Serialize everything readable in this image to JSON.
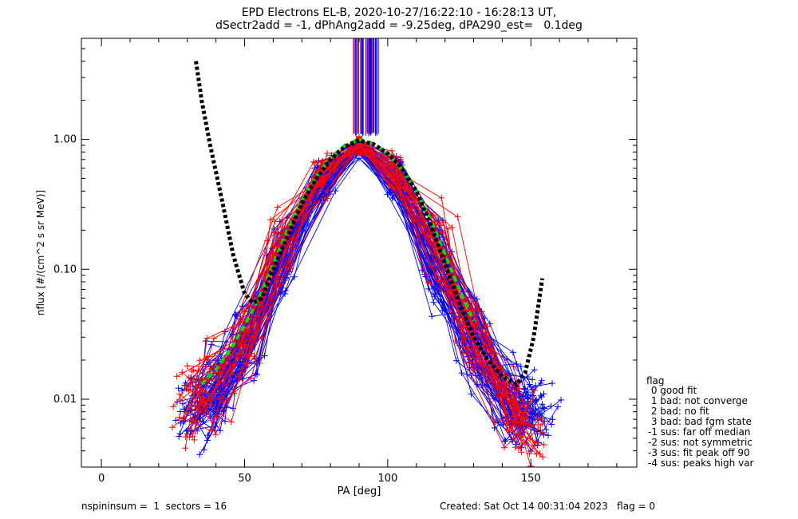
{
  "title_line1": "EPD Electrons EL-B, 2020-10-27/16:22:10 - 16:28:13 UT,",
  "title_line2": "dSectr2add = -1, dPhAng2add = -9.25deg, dPA290_est=   0.1deg",
  "footer_left": "nspininsum =  1  sectors = 16",
  "footer_right": "Created: Sat Oct 14 00:31:04 2023   flag = 0",
  "legend": {
    "title": "flag",
    "items": [
      " 0 good fit",
      " 1 bad: not converge",
      " 2 bad: no fit",
      " 3 bad: bad fgm state",
      "-1 sus: far off median",
      "-2 sus: not symmetric",
      "-3 sus: fit peak off 90",
      "-4 sus: peaks high var"
    ]
  },
  "chart_data": {
    "type": "line",
    "xlabel": "PA [deg]",
    "ylabel": "nflux [#/(cm^2 s sr MeV)]",
    "xlim": [
      -7,
      187
    ],
    "ylim": [
      0.003,
      6.0
    ],
    "yscale": "log",
    "xticks": [
      "0",
      "50",
      "100",
      "150"
    ],
    "yticks": [
      "0.01",
      "0.10",
      "1.00"
    ],
    "colors": {
      "blue": "#0000ff",
      "red": "#ff0000",
      "green": "#00dd00",
      "black": "#000000"
    },
    "spikes": {
      "x_min": 87,
      "x_max": 97,
      "from_y": 1.1,
      "red_x": [
        88,
        89.5,
        90.5,
        91.5,
        93,
        94.5,
        96
      ]
    },
    "series": [
      {
        "color": "blue",
        "count": 70,
        "marker": "+",
        "x": [
          33,
          41,
          50,
          63,
          77,
          90,
          103,
          117,
          130,
          143,
          151
        ],
        "y": [
          0.008,
          0.012,
          0.025,
          0.13,
          0.5,
          0.87,
          0.5,
          0.12,
          0.028,
          0.009,
          0.008
        ]
      },
      {
        "color": "red",
        "count": 30,
        "marker": "+",
        "x": [
          30,
          39,
          50,
          63,
          77,
          90,
          103,
          117,
          130,
          143,
          150
        ],
        "y": [
          0.009,
          0.012,
          0.028,
          0.16,
          0.55,
          0.92,
          0.55,
          0.15,
          0.03,
          0.009,
          0.006
        ]
      },
      {
        "name": "fit",
        "color": "green",
        "style": "dashed",
        "x": [
          35,
          40,
          45,
          50,
          55,
          60,
          65,
          70,
          75,
          80,
          85,
          90,
          95,
          100,
          105,
          110,
          115,
          120,
          125,
          130
        ],
        "y": [
          0.013,
          0.017,
          0.024,
          0.037,
          0.06,
          0.11,
          0.2,
          0.34,
          0.52,
          0.72,
          0.9,
          1.0,
          0.93,
          0.78,
          0.58,
          0.4,
          0.24,
          0.13,
          0.07,
          0.04
        ]
      },
      {
        "name": "median",
        "color": "black",
        "style": "dashed",
        "x": [
          33,
          35,
          38,
          42,
          46,
          50,
          53,
          56,
          60,
          65,
          70,
          75,
          80,
          85,
          90,
          95,
          100,
          105,
          110,
          115,
          120,
          125,
          130,
          135,
          140,
          145,
          148,
          151,
          154
        ],
        "y": [
          4.0,
          2.0,
          0.9,
          0.35,
          0.13,
          0.065,
          0.055,
          0.06,
          0.1,
          0.18,
          0.32,
          0.5,
          0.7,
          0.88,
          0.98,
          0.92,
          0.78,
          0.6,
          0.4,
          0.22,
          0.11,
          0.055,
          0.03,
          0.02,
          0.015,
          0.013,
          0.016,
          0.03,
          0.085
        ]
      }
    ]
  }
}
